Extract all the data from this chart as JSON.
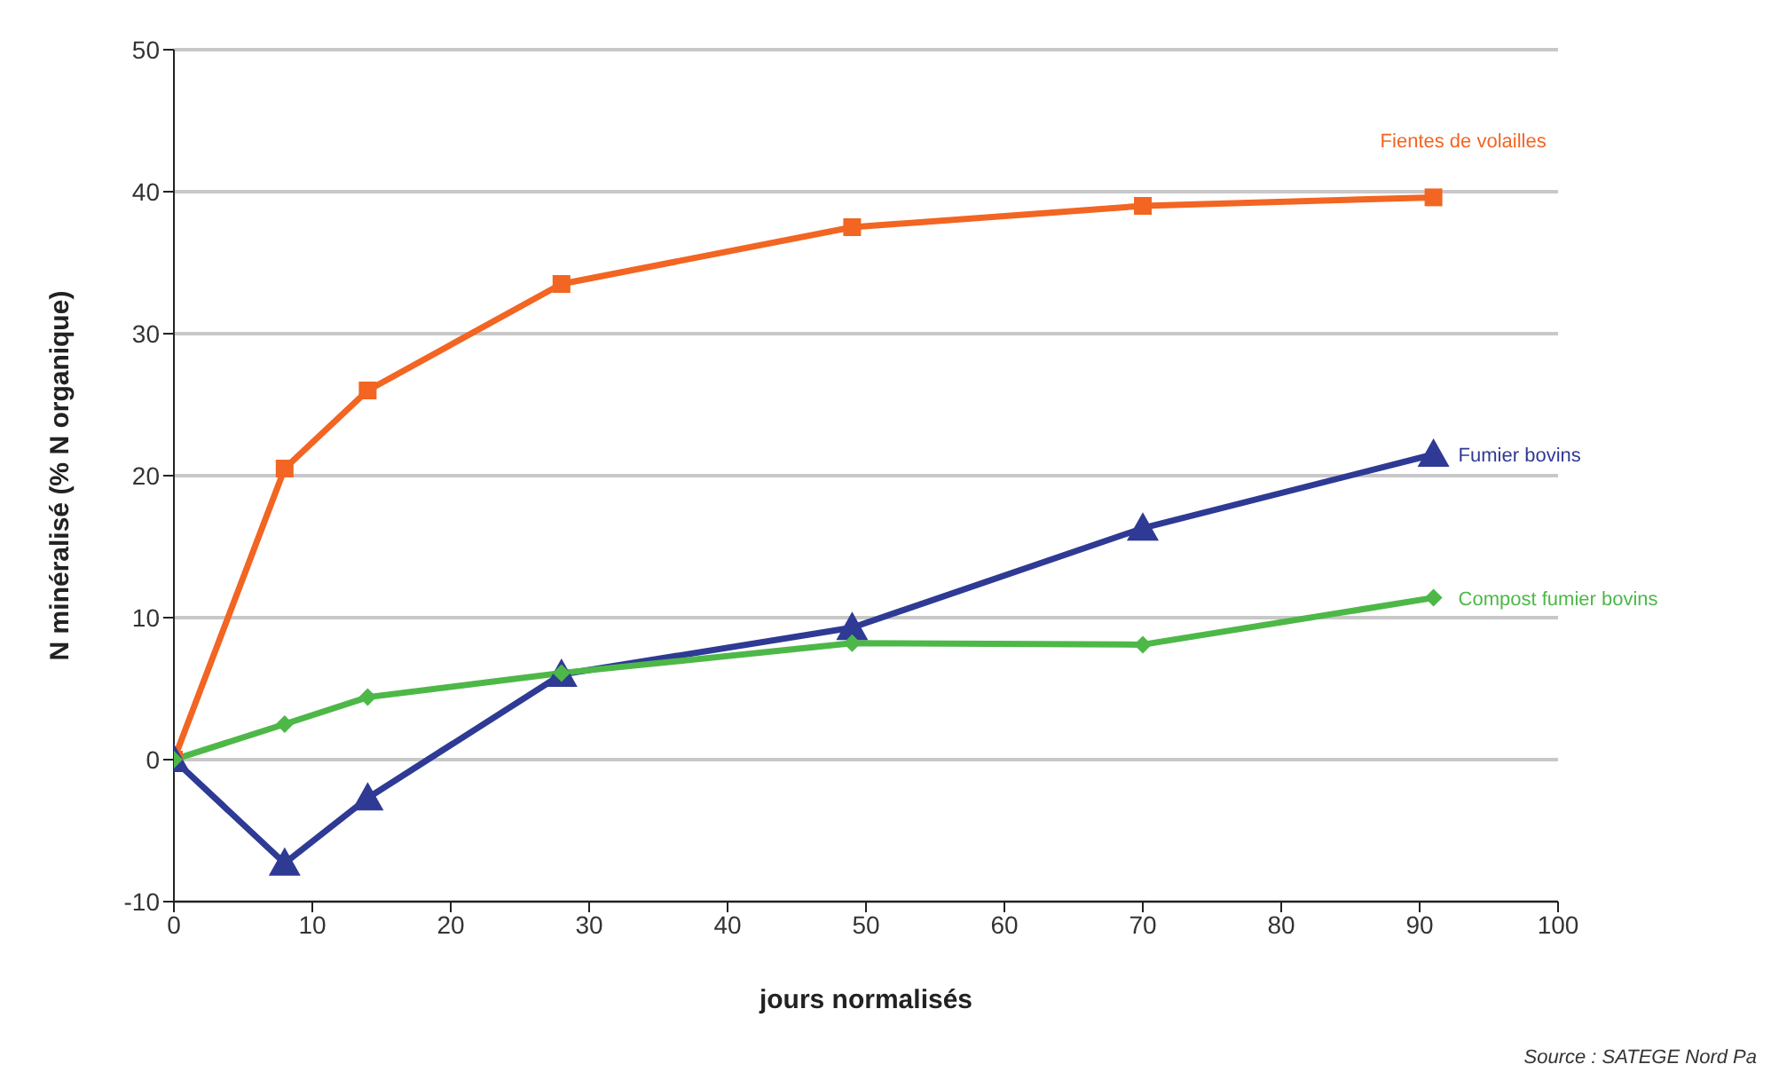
{
  "chart_data": {
    "type": "line",
    "xlabel": "jours normalisés",
    "ylabel": "N minéralisé (% N organique)",
    "x": [
      0,
      8,
      14,
      28,
      49,
      70,
      91
    ],
    "series": [
      {
        "name": "Fientes de volailles",
        "color": "#f26522",
        "marker": "square",
        "values": [
          0,
          20.5,
          26,
          33.5,
          37.5,
          39,
          39.6
        ]
      },
      {
        "name": "Fumier bovins",
        "color": "#2e3a94",
        "marker": "triangle",
        "values": [
          0,
          -7.3,
          -2.7,
          6,
          9.3,
          16.3,
          21.5
        ]
      },
      {
        "name": "Compost fumier bovins",
        "color": "#4db848",
        "marker": "diamond",
        "values": [
          0,
          2.5,
          4.4,
          6.1,
          8.2,
          8.1,
          11.4
        ]
      }
    ],
    "xlim": [
      0,
      100
    ],
    "xticks": [
      0,
      10,
      20,
      30,
      40,
      50,
      60,
      70,
      80,
      90,
      100
    ],
    "ylim": [
      -10,
      50
    ],
    "yticks": [
      -10,
      0,
      10,
      20,
      30,
      40,
      50
    ],
    "grid": "y",
    "legend": false,
    "line_style": "solid",
    "annotations": [
      "Source : SATEGE Nord Pa"
    ]
  }
}
